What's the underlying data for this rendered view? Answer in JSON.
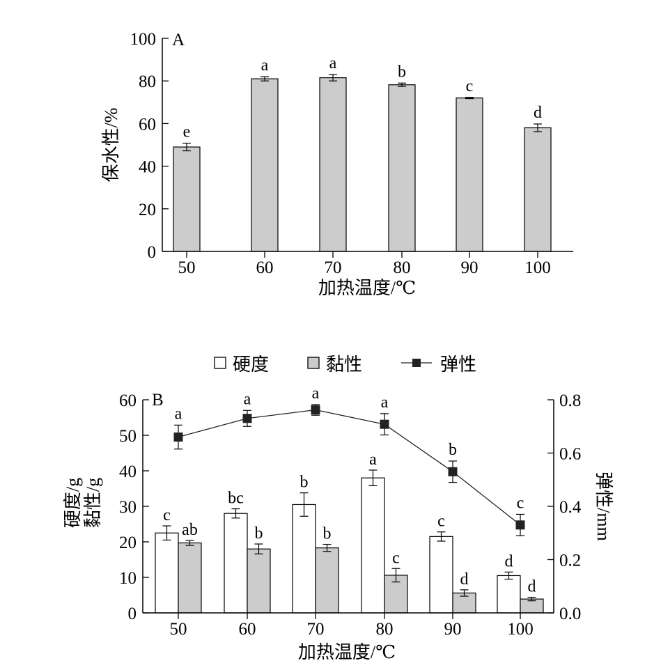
{
  "chart_data": [
    {
      "type": "bar",
      "panel_label": "A",
      "categories": [
        "50",
        "60",
        "70",
        "80",
        "90",
        "100"
      ],
      "values": [
        49.0,
        81.0,
        81.5,
        78.2,
        72.0,
        58.0
      ],
      "errors": [
        1.8,
        1.0,
        1.5,
        0.8,
        0.3,
        1.8
      ],
      "significance": [
        "e",
        "a",
        "a",
        "b",
        "c",
        "d"
      ],
      "xlabel": "加热温度/℃",
      "ylabel": "保水性/%",
      "ylim": [
        0,
        100
      ],
      "yticks": [
        "0",
        "20",
        "40",
        "60",
        "80",
        "100"
      ],
      "colors": {
        "bar": "#cccccc"
      },
      "grid": false
    },
    {
      "type": "bar",
      "panel_label": "B",
      "categories": [
        "50",
        "60",
        "70",
        "80",
        "90",
        "100"
      ],
      "series": [
        {
          "name": "硬度",
          "axis": "left",
          "values": [
            22.5,
            28.0,
            30.5,
            38.0,
            21.5,
            10.5
          ],
          "errors": [
            2.0,
            1.3,
            3.3,
            2.2,
            1.3,
            1.0
          ],
          "significance": [
            "c",
            "bc",
            "b",
            "a",
            "c",
            "d"
          ],
          "color": "#ffffff"
        },
        {
          "name": "黏性",
          "axis": "left",
          "values": [
            19.7,
            18.0,
            18.3,
            10.6,
            5.6,
            3.9
          ],
          "errors": [
            0.7,
            1.4,
            1.0,
            1.9,
            0.9,
            0.5
          ],
          "significance": [
            "ab",
            "b",
            "b",
            "c",
            "d",
            "d"
          ],
          "color": "#cccccc"
        },
        {
          "name": "弹性",
          "axis": "right",
          "type": "line",
          "values": [
            0.66,
            0.73,
            0.762,
            0.708,
            0.53,
            0.33
          ],
          "errors": [
            0.045,
            0.03,
            0.02,
            0.04,
            0.04,
            0.04
          ],
          "significance": [
            "a",
            "a",
            "a",
            "a",
            "b",
            "c"
          ],
          "color": "#222222"
        }
      ],
      "xlabel": "加热温度/℃",
      "ylabel_left": [
        "硬度/g",
        "黏性/g"
      ],
      "ylabel_right": "弹性/mm",
      "ylim_left": [
        0,
        60
      ],
      "yticks_left": [
        "0",
        "10",
        "20",
        "30",
        "40",
        "50",
        "60"
      ],
      "ylim_right": [
        0,
        0.8
      ],
      "yticks_right": [
        "0.0",
        "0.2",
        "0.4",
        "0.6",
        "0.8"
      ],
      "legend_placement": "top-center",
      "grid": false
    }
  ]
}
